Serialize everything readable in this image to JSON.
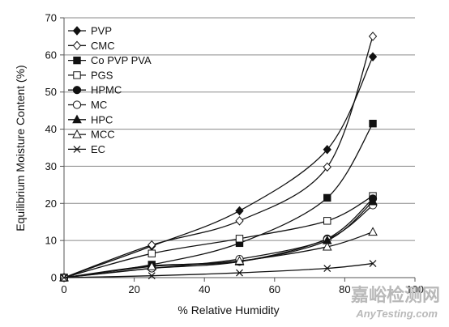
{
  "chart_data": {
    "type": "line",
    "xlabel": "% Relative Humidity",
    "ylabel": "Equilibrium Moisture Content (%)",
    "xlim": [
      0,
      100
    ],
    "ylim": [
      0,
      70
    ],
    "xticks": [
      0,
      20,
      40,
      60,
      80,
      100
    ],
    "yticks": [
      0,
      10,
      20,
      30,
      40,
      50,
      60,
      70
    ],
    "grid": "horizontal",
    "legend_position": "top-left",
    "series": [
      {
        "name": "PVP",
        "marker": "diamond-filled",
        "points": [
          [
            0,
            0
          ],
          [
            25,
            8.5
          ],
          [
            50,
            18
          ],
          [
            75,
            34.5
          ],
          [
            88,
            59.5
          ]
        ]
      },
      {
        "name": "CMC",
        "marker": "diamond-open",
        "points": [
          [
            0,
            0
          ],
          [
            25,
            8.8
          ],
          [
            50,
            15.3
          ],
          [
            75,
            29.8
          ],
          [
            88,
            65
          ]
        ]
      },
      {
        "name": "Co PVP PVA",
        "marker": "square-filled",
        "points": [
          [
            0,
            0
          ],
          [
            25,
            3.5
          ],
          [
            50,
            9.3
          ],
          [
            75,
            21.5
          ],
          [
            88,
            41.5
          ]
        ]
      },
      {
        "name": "PGS",
        "marker": "square-open",
        "points": [
          [
            0,
            0
          ],
          [
            25,
            6.5
          ],
          [
            50,
            10.5
          ],
          [
            75,
            15.3
          ],
          [
            88,
            22
          ]
        ]
      },
      {
        "name": "HPMC",
        "marker": "circle-filled",
        "points": [
          [
            0,
            0
          ],
          [
            25,
            2.5
          ],
          [
            50,
            4.3
          ],
          [
            75,
            10.5
          ],
          [
            88,
            21.3
          ]
        ]
      },
      {
        "name": "MC",
        "marker": "circle-open",
        "points": [
          [
            0,
            0
          ],
          [
            25,
            2.5
          ],
          [
            50,
            5
          ],
          [
            75,
            10.3
          ],
          [
            88,
            19.5
          ]
        ]
      },
      {
        "name": "HPC",
        "marker": "triangle-filled",
        "points": [
          [
            0,
            0
          ],
          [
            25,
            3.2
          ],
          [
            50,
            4.3
          ],
          [
            75,
            10
          ],
          [
            88,
            20.5
          ]
        ]
      },
      {
        "name": "MCC",
        "marker": "triangle-open",
        "points": [
          [
            0,
            0
          ],
          [
            25,
            3
          ],
          [
            50,
            4.5
          ],
          [
            75,
            8.3
          ],
          [
            88,
            12.3
          ]
        ]
      },
      {
        "name": "EC",
        "marker": "x",
        "points": [
          [
            0,
            0
          ],
          [
            25,
            0.5
          ],
          [
            50,
            1.3
          ],
          [
            75,
            2.5
          ],
          [
            88,
            3.8
          ]
        ]
      }
    ]
  },
  "watermark": {
    "cn": "嘉峪检测网",
    "en": "AnyTesting.com"
  }
}
